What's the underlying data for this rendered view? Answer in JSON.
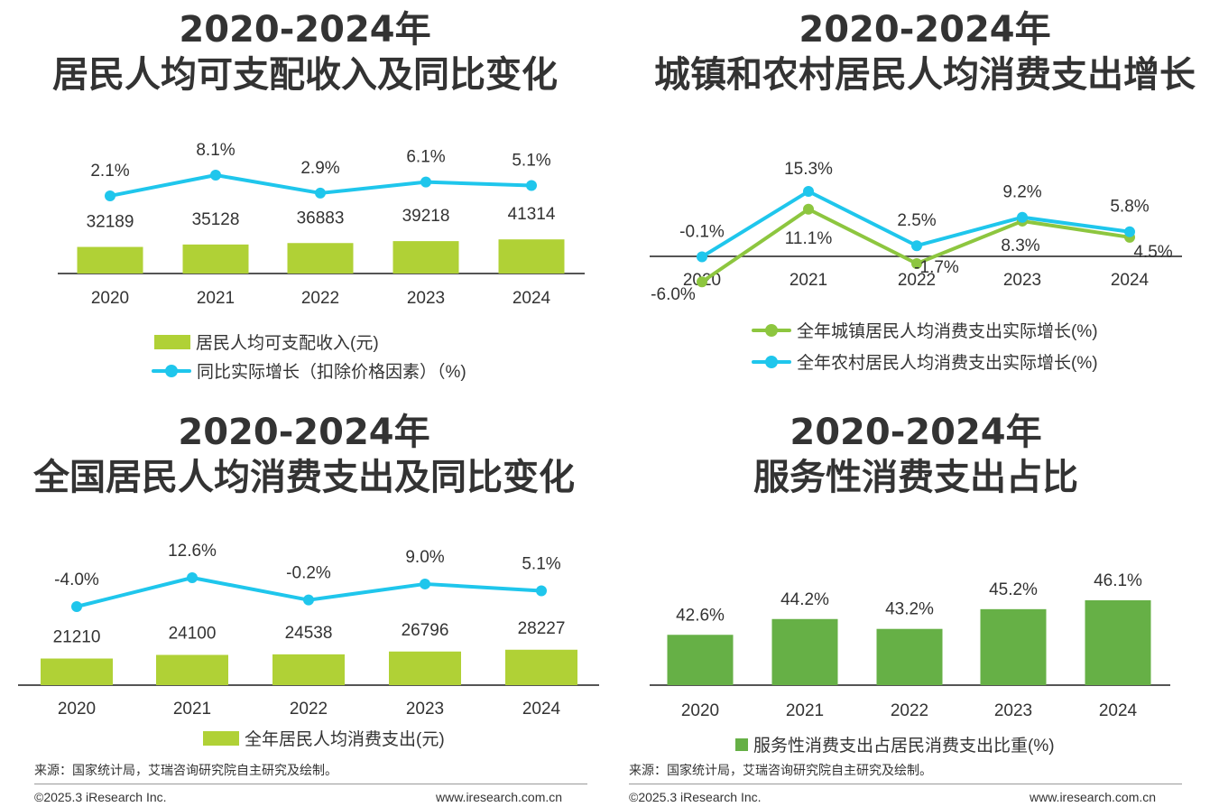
{
  "colors": {
    "bar": "#b0d136",
    "line": "#1fc6ec",
    "urban": "#8dc63f",
    "rural": "#1fc6ec",
    "service": "#66b046",
    "axis": "#555555"
  },
  "chart_data": [
    {
      "id": "income",
      "type": "bar+line",
      "title_line1": "2020-2024年",
      "title_line2": "居民人均可支配收入及同比变化",
      "categories": [
        "2020",
        "2021",
        "2022",
        "2023",
        "2024"
      ],
      "series": [
        {
          "name": "居民人均可支配收入(元)",
          "kind": "bar",
          "values": [
            32189,
            35128,
            36883,
            39218,
            41314
          ]
        },
        {
          "name": "同比实际增长（扣除价格因素）（%)",
          "kind": "line",
          "values": [
            2.1,
            8.1,
            2.9,
            6.1,
            5.1
          ],
          "labels": [
            "2.1%",
            "8.1%",
            "2.9%",
            "6.1%",
            "5.1%"
          ]
        }
      ]
    },
    {
      "id": "consumption_urban_rural",
      "type": "line",
      "title_line1": "2020-2024年",
      "title_line2": "城镇和农村居民人均消费支出增长",
      "categories": [
        "2020",
        "2021",
        "2022",
        "2023",
        "2024"
      ],
      "series": [
        {
          "name": "全年城镇居民人均消费支出实际增长(%)",
          "values": [
            -6.0,
            11.1,
            -1.7,
            8.3,
            4.5
          ],
          "labels": [
            "-6.0%",
            "11.1%",
            "-1.7%",
            "8.3%",
            "4.5%"
          ]
        },
        {
          "name": "全年农村居民人均消费支出实际增长(%)",
          "values": [
            -0.1,
            15.3,
            2.5,
            9.2,
            5.8
          ],
          "labels": [
            "-0.1%",
            "15.3%",
            "2.5%",
            "9.2%",
            "5.8%"
          ]
        }
      ]
    },
    {
      "id": "consumption",
      "type": "bar+line",
      "title_line1": "2020-2024年",
      "title_line2": "全国居民人均消费支出及同比变化",
      "categories": [
        "2020",
        "2021",
        "2022",
        "2023",
        "2024"
      ],
      "series": [
        {
          "name": "全年居民人均消费支出(元)",
          "kind": "bar",
          "values": [
            21210,
            24100,
            24538,
            26796,
            28227
          ]
        },
        {
          "kind": "line",
          "values": [
            -4.0,
            12.6,
            -0.2,
            9.0,
            5.1
          ],
          "labels": [
            "-4.0%",
            "12.6%",
            "-0.2%",
            "9.0%",
            "5.1%"
          ]
        }
      ]
    },
    {
      "id": "service_share",
      "type": "bar",
      "title_line1": "2020-2024年",
      "title_line2": "服务性消费支出占比",
      "categories": [
        "2020",
        "2021",
        "2022",
        "2023",
        "2024"
      ],
      "series": [
        {
          "name": "服务性消费支出占居民消费支出比重(%)",
          "values": [
            42.6,
            44.2,
            43.2,
            45.2,
            46.1
          ],
          "labels": [
            "42.6%",
            "44.2%",
            "43.2%",
            "45.2%",
            "46.1%"
          ]
        }
      ]
    }
  ],
  "footer": {
    "source": "来源：国家统计局，艾瑞咨询研究院自主研究及绘制。",
    "copyright": "©2025.3 iResearch Inc.",
    "url": "www.iresearch.com.cn"
  }
}
